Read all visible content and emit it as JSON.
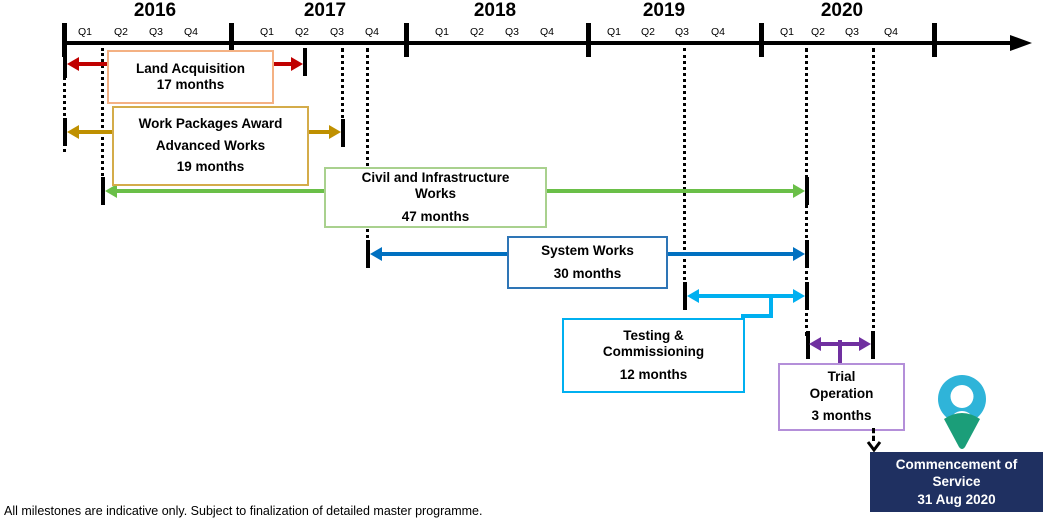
{
  "timeline": {
    "years": [
      {
        "label": "2016",
        "quarters": [
          "Q1",
          "Q2",
          "Q3",
          "Q4"
        ]
      },
      {
        "label": "2017",
        "quarters": [
          "Q1",
          "Q2",
          "Q3",
          "Q4"
        ]
      },
      {
        "label": "2018",
        "quarters": [
          "Q1",
          "Q2",
          "Q3",
          "Q4"
        ]
      },
      {
        "label": "2019",
        "quarters": [
          "Q1",
          "Q2",
          "Q3",
          "Q4"
        ]
      },
      {
        "label": "2020",
        "quarters": [
          "Q1",
          "Q2",
          "Q3",
          "Q4"
        ]
      }
    ]
  },
  "phases": [
    {
      "id": "land-acquisition",
      "lines": [
        "Land Acquisition"
      ],
      "duration": "17 months",
      "arrow_color": "#C00000",
      "box_border": "#F4B183"
    },
    {
      "id": "work-packages-award",
      "lines": [
        "Work Packages Award",
        "Advanced Works"
      ],
      "duration": "19 months",
      "arrow_color": "#BF9000",
      "box_border": "#D4AC4A"
    },
    {
      "id": "civil-infrastructure-works",
      "lines": [
        "Civil and Infrastructure",
        "Works"
      ],
      "duration": "47 months",
      "arrow_color": "#6ABF48",
      "box_border": "#A9D18E"
    },
    {
      "id": "system-works",
      "lines": [
        "System Works"
      ],
      "duration": "30 months",
      "arrow_color": "#0070C0",
      "box_border": "#2E75B6"
    },
    {
      "id": "testing-commissioning",
      "lines": [
        "Testing &",
        "Commissioning"
      ],
      "duration": "12 months",
      "arrow_color": "#00B0F0",
      "box_border": "#00B0F0"
    },
    {
      "id": "trial-operation",
      "lines": [
        "Trial",
        "Operation"
      ],
      "duration": "3 months",
      "arrow_color": "#7030A0",
      "box_border": "#B48FD9"
    }
  ],
  "milestone": {
    "lines": [
      "Commencement of",
      "Service"
    ],
    "date": "31 Aug 2020",
    "bg_color": "#1F3061",
    "pin_ring_color": "#2FB4D9",
    "pin_point_color": "#1B9E79"
  },
  "footnote": "All milestones are indicative only. Subject to finalization of detailed master programme."
}
